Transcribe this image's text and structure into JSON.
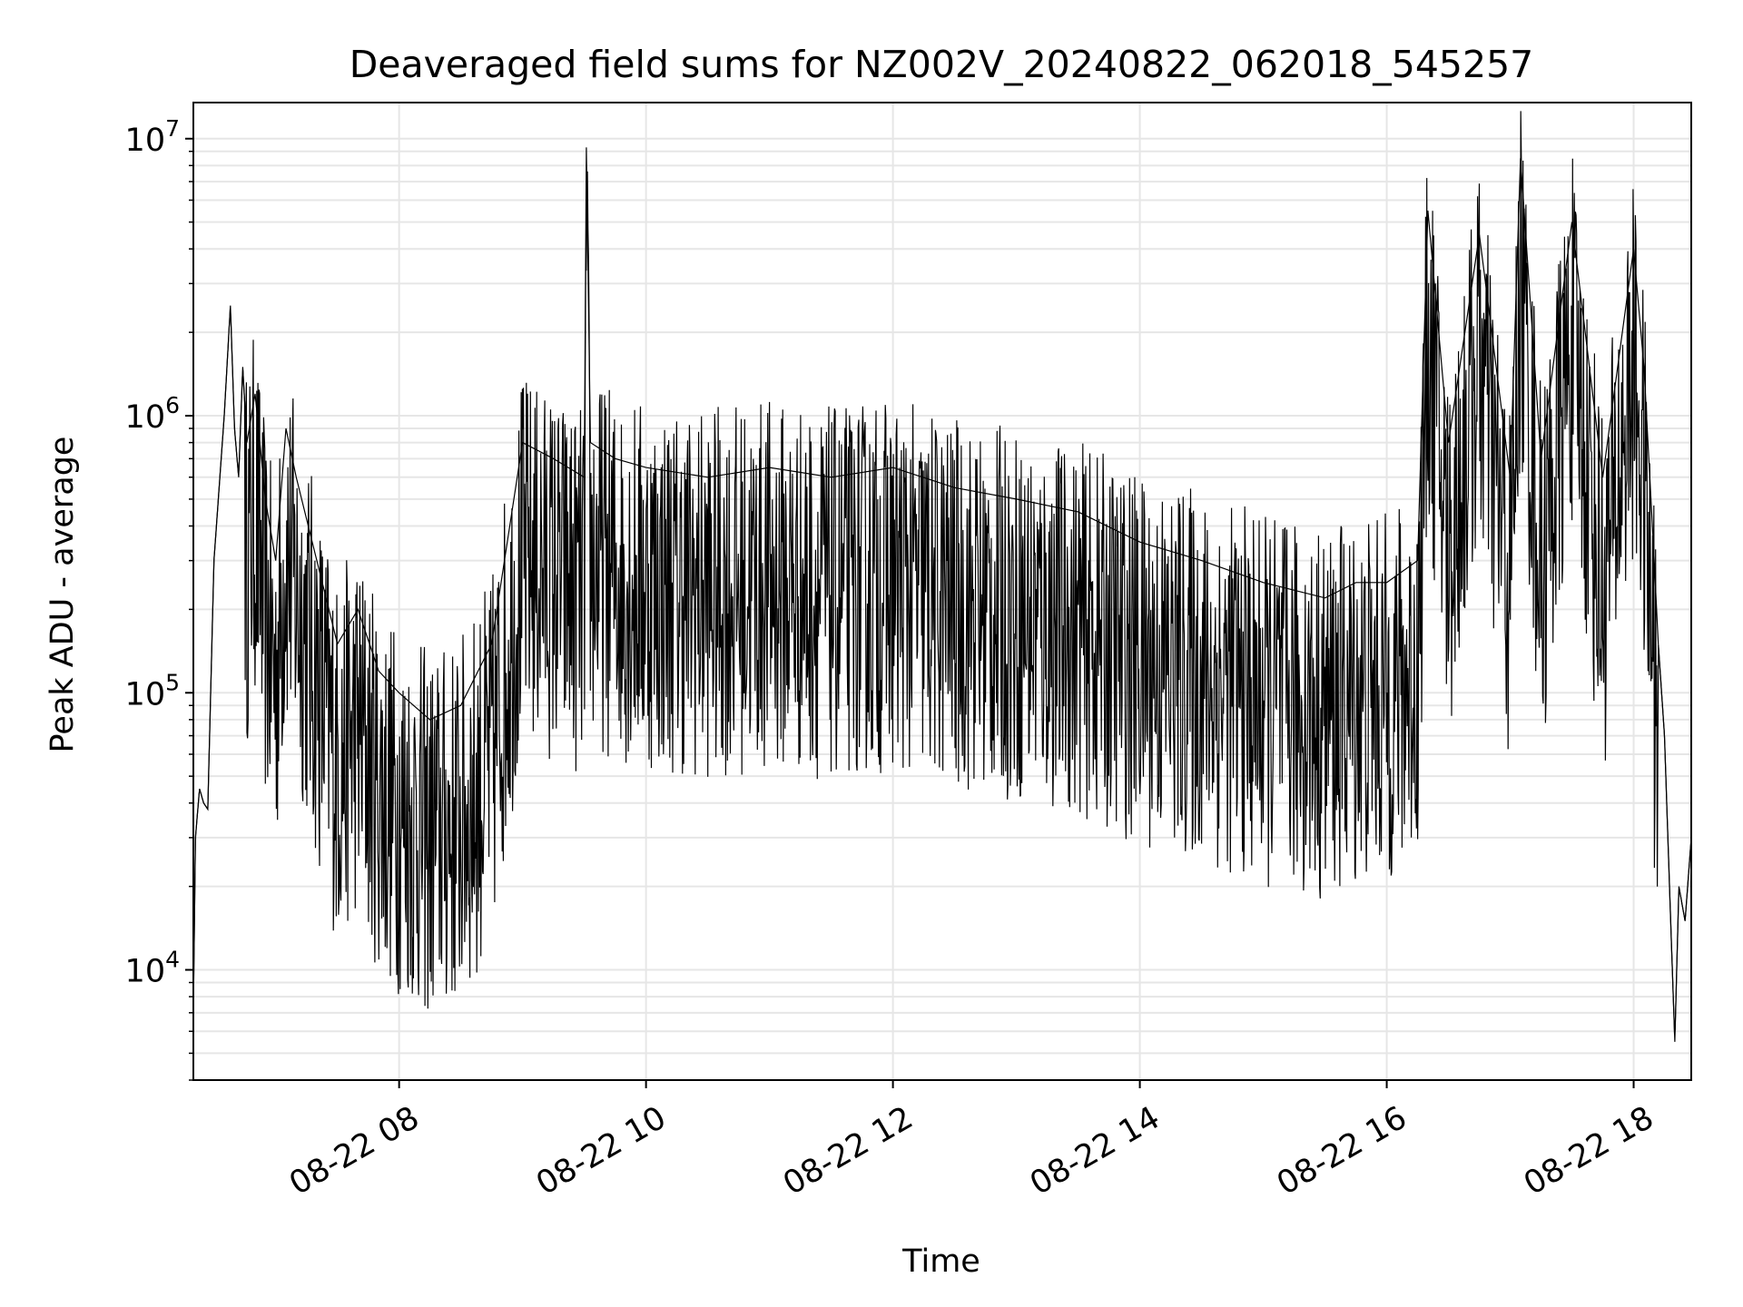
{
  "chart_data": {
    "type": "line",
    "title": "Deaveraged field sums for NZ002V_20240822_062018_545257",
    "xlabel": "Time",
    "ylabel": "Peak ADU - average",
    "yscale": "log",
    "xlim": [
      "2024-08-22 06:20",
      "2024-08-22 18:28"
    ],
    "ylim": [
      4000,
      13500000
    ],
    "x_ticks": [
      "08-22 08",
      "08-22 10",
      "08-22 12",
      "08-22 14",
      "08-22 16",
      "08-22 18"
    ],
    "x_tick_values": [
      "2024-08-22 08:00",
      "2024-08-22 10:00",
      "2024-08-22 12:00",
      "2024-08-22 14:00",
      "2024-08-22 16:00",
      "2024-08-22 18:00"
    ],
    "y_ticks": [
      {
        "base": "10",
        "exp": "4",
        "value": 10000
      },
      {
        "base": "10",
        "exp": "5",
        "value": 100000
      },
      {
        "base": "10",
        "exp": "6",
        "value": 1000000
      },
      {
        "base": "10",
        "exp": "7",
        "value": 10000000
      }
    ],
    "grid": true,
    "minor_grid": true,
    "line_color": "#000000",
    "grid_color": "#e6e6e6",
    "series": [
      {
        "x": [
          "2024-08-22 06:20",
          "2024-08-22 06:21",
          "2024-08-22 06:23",
          "2024-08-22 06:25",
          "2024-08-22 06:27",
          "2024-08-22 06:30",
          "2024-08-22 06:35",
          "2024-08-22 06:38",
          "2024-08-22 06:40",
          "2024-08-22 06:42",
          "2024-08-22 06:44",
          "2024-08-22 06:46",
          "2024-08-22 06:50",
          "2024-08-22 06:55",
          "2024-08-22 07:00",
          "2024-08-22 07:05",
          "2024-08-22 07:10",
          "2024-08-22 07:20",
          "2024-08-22 07:30",
          "2024-08-22 07:40",
          "2024-08-22 07:50",
          "2024-08-22 08:00",
          "2024-08-22 08:15",
          "2024-08-22 08:30",
          "2024-08-22 08:45",
          "2024-08-22 09:00",
          "2024-08-22 09:15",
          "2024-08-22 09:30",
          "2024-08-22 09:31",
          "2024-08-22 09:33",
          "2024-08-22 09:45",
          "2024-08-22 10:00",
          "2024-08-22 10:30",
          "2024-08-22 11:00",
          "2024-08-22 11:30",
          "2024-08-22 12:00",
          "2024-08-22 12:30",
          "2024-08-22 13:00",
          "2024-08-22 13:30",
          "2024-08-22 14:00",
          "2024-08-22 14:30",
          "2024-08-22 15:00",
          "2024-08-22 15:30",
          "2024-08-22 15:45",
          "2024-08-22 16:00",
          "2024-08-22 16:15",
          "2024-08-22 16:20",
          "2024-08-22 16:30",
          "2024-08-22 16:45",
          "2024-08-22 17:00",
          "2024-08-22 17:05",
          "2024-08-22 17:15",
          "2024-08-22 17:30",
          "2024-08-22 17:45",
          "2024-08-22 18:00",
          "2024-08-22 18:05",
          "2024-08-22 18:10",
          "2024-08-22 18:12",
          "2024-08-22 18:15",
          "2024-08-22 18:18",
          "2024-08-22 18:20",
          "2024-08-22 18:22",
          "2024-08-22 18:25",
          "2024-08-22 18:28"
        ],
        "y": [
          7000,
          30000,
          45000,
          40000,
          38000,
          300000,
          1000000,
          2500000,
          900000,
          600000,
          1500000,
          800000,
          1200000,
          500000,
          300000,
          900000,
          600000,
          300000,
          150000,
          200000,
          120000,
          100000,
          80000,
          90000,
          150000,
          800000,
          700000,
          600000,
          9300000,
          800000,
          700000,
          650000,
          600000,
          650000,
          600000,
          650000,
          550000,
          500000,
          450000,
          350000,
          300000,
          250000,
          220000,
          250000,
          250000,
          300000,
          5500000,
          800000,
          4500000,
          600000,
          8500000,
          700000,
          5000000,
          600000,
          4000000,
          1500000,
          300000,
          150000,
          70000,
          15000,
          5500,
          20000,
          15000,
          30000
        ]
      }
    ]
  }
}
